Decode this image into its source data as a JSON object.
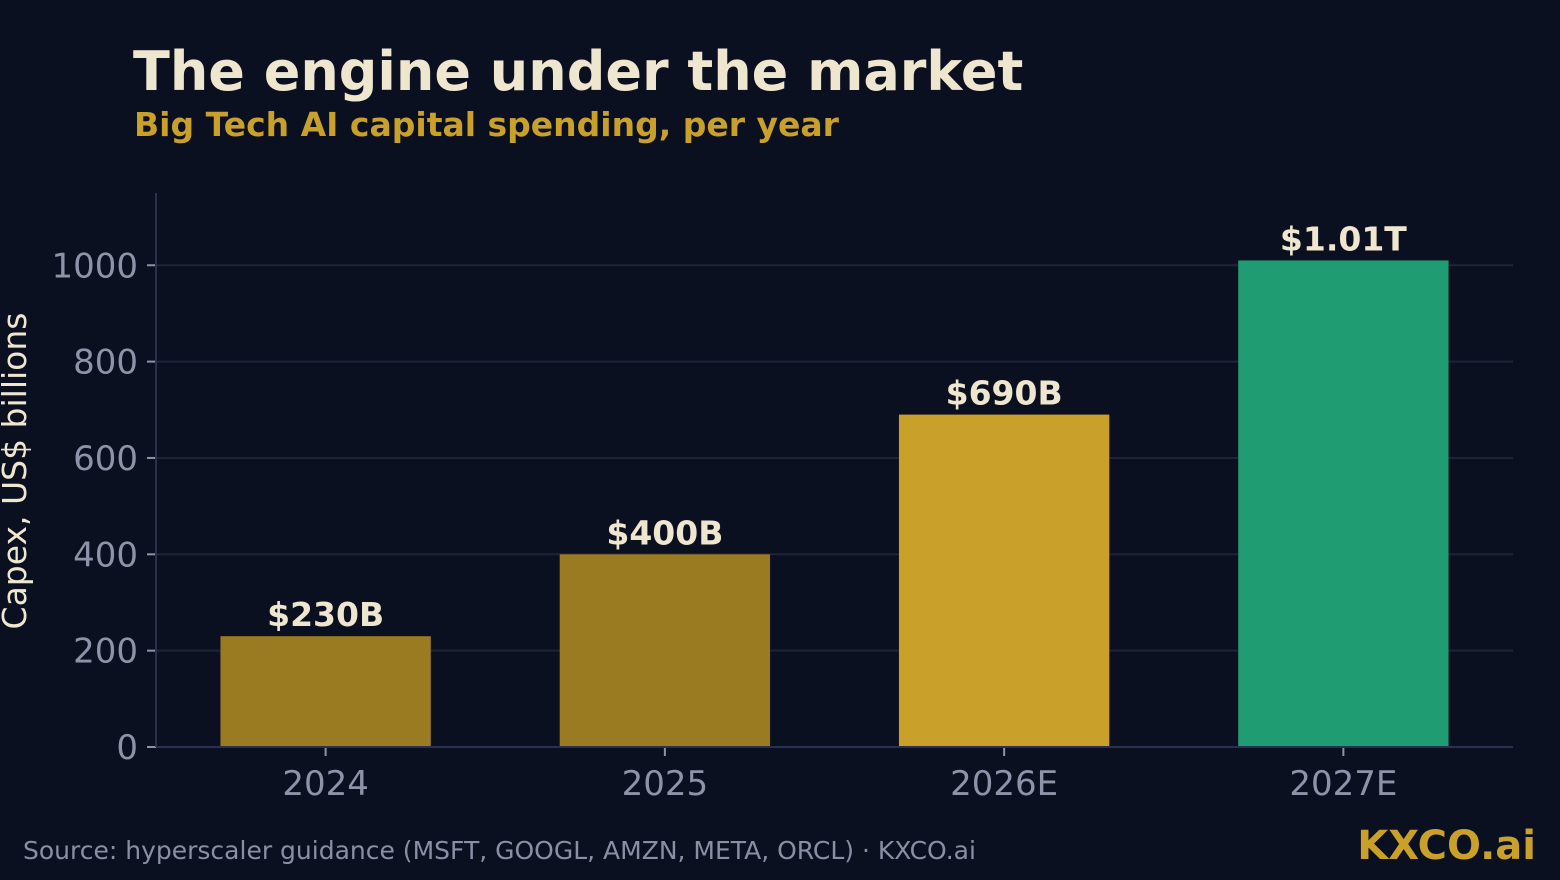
{
  "header": {
    "title": "The engine under the market",
    "subtitle": "Big Tech AI capital spending, per year"
  },
  "footer": {
    "source": "Source: hyperscaler guidance (MSFT, GOOGL, AMZN, META, ORCL) · KXCO.ai",
    "brand": "KXCO.ai"
  },
  "colors": {
    "background": "#0b1020",
    "title": "#efe6cf",
    "accent_gold": "#c9a12a",
    "bar_dark_gold": "#9a7b22",
    "bar_gold": "#c9a12a",
    "bar_green": "#1f9c72",
    "grid": "#1e2438",
    "tick_text": "#8f93a9"
  },
  "chart_data": {
    "type": "bar",
    "title": "",
    "xlabel": "",
    "ylabel": "Capex, US$ billions",
    "categories": [
      "2024",
      "2025",
      "2026E",
      "2027E"
    ],
    "values": [
      230,
      400,
      690,
      1010
    ],
    "data_labels": [
      "$230B",
      "$400B",
      "$690B",
      "$1.01T"
    ],
    "bar_colors": [
      "#9a7b22",
      "#9a7b22",
      "#c9a12a",
      "#1f9c72"
    ],
    "yticks": [
      0,
      200,
      400,
      600,
      800,
      1000
    ],
    "ytick_labels": [
      "0",
      "200",
      "400",
      "600",
      "800",
      "1000"
    ],
    "ylim": [
      0,
      1150
    ],
    "grid": true,
    "legend": "none"
  }
}
